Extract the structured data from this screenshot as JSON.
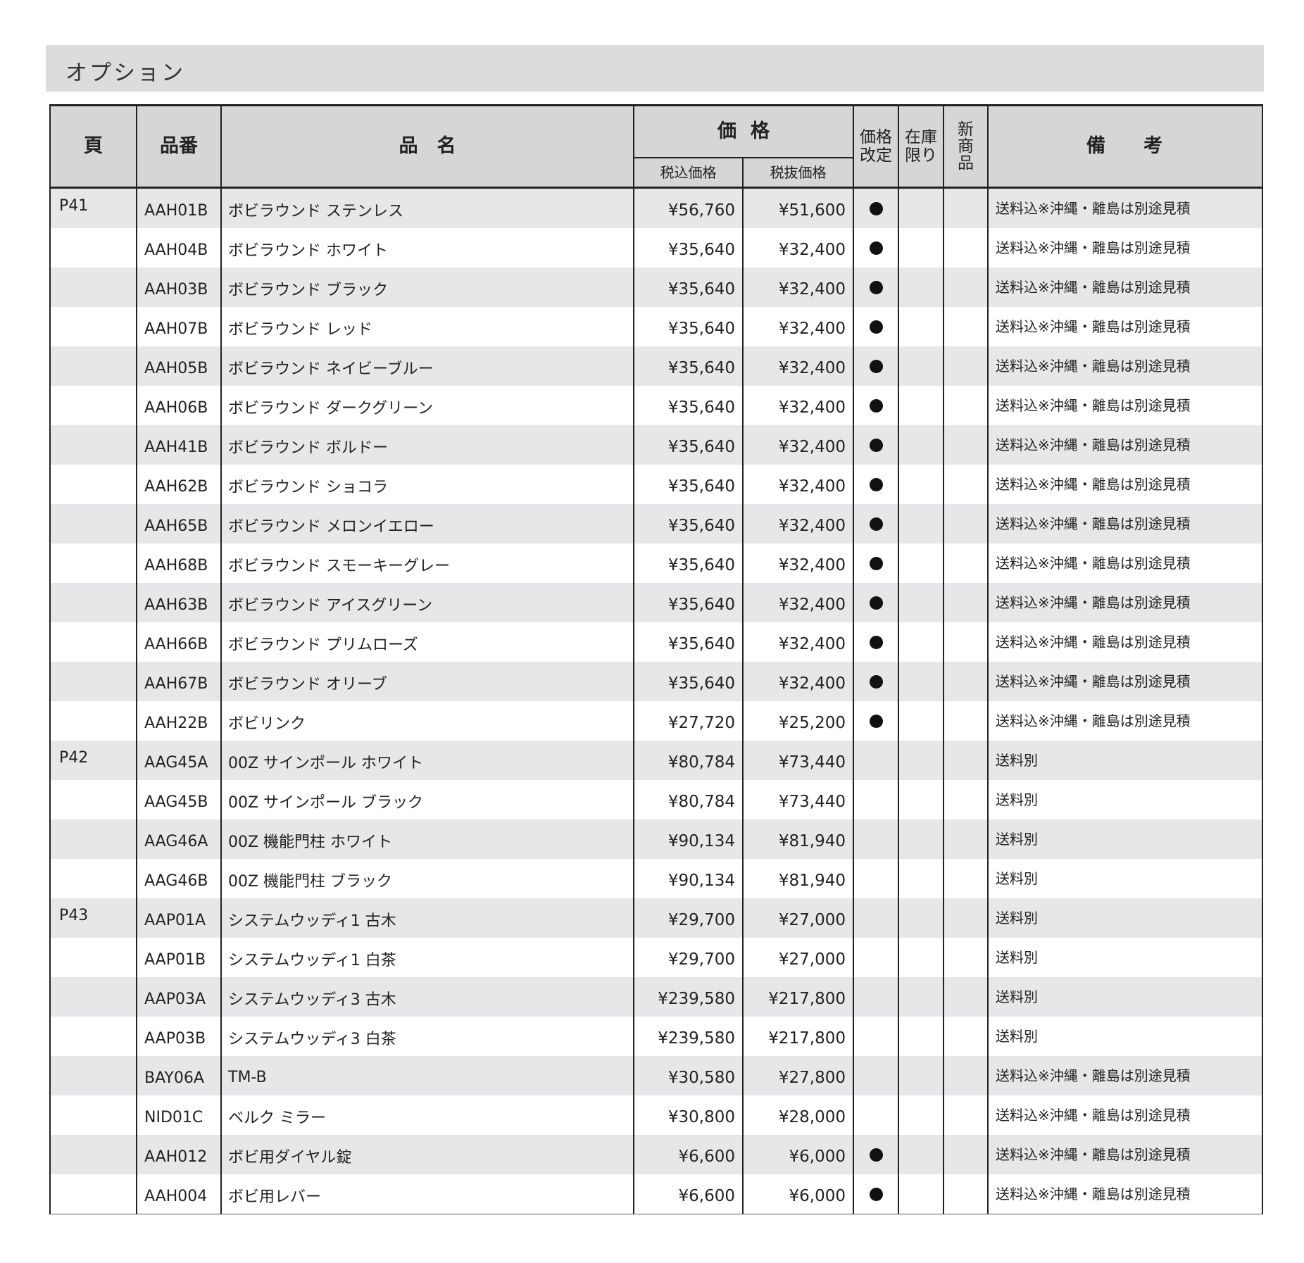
{
  "title": "オプション",
  "header": {
    "page": "頁",
    "code": "品番",
    "name": "品　名",
    "price": "価格",
    "price_incl": "税込価格",
    "price_excl": "税抜価格",
    "price_revised": "価格改定",
    "stock_limited": "在庫限り",
    "new_item": "新商品",
    "remarks": "備　　考"
  },
  "rows": [
    {
      "page": "P41",
      "code": "AAH01B",
      "name": "ボビラウンド ステンレス",
      "incl": "¥56,760",
      "excl": "¥51,600",
      "revised": true,
      "note": "送料込※沖縄・離島は別途見積"
    },
    {
      "page": "",
      "code": "AAH04B",
      "name": "ボビラウンド ホワイト",
      "incl": "¥35,640",
      "excl": "¥32,400",
      "revised": true,
      "note": "送料込※沖縄・離島は別途見積"
    },
    {
      "page": "",
      "code": "AAH03B",
      "name": "ボビラウンド ブラック",
      "incl": "¥35,640",
      "excl": "¥32,400",
      "revised": true,
      "note": "送料込※沖縄・離島は別途見積"
    },
    {
      "page": "",
      "code": "AAH07B",
      "name": "ボビラウンド レッド",
      "incl": "¥35,640",
      "excl": "¥32,400",
      "revised": true,
      "note": "送料込※沖縄・離島は別途見積"
    },
    {
      "page": "",
      "code": "AAH05B",
      "name": "ボビラウンド ネイビーブルー",
      "incl": "¥35,640",
      "excl": "¥32,400",
      "revised": true,
      "note": "送料込※沖縄・離島は別途見積"
    },
    {
      "page": "",
      "code": "AAH06B",
      "name": "ボビラウンド ダークグリーン",
      "incl": "¥35,640",
      "excl": "¥32,400",
      "revised": true,
      "note": "送料込※沖縄・離島は別途見積"
    },
    {
      "page": "",
      "code": "AAH41B",
      "name": "ボビラウンド ボルドー",
      "incl": "¥35,640",
      "excl": "¥32,400",
      "revised": true,
      "note": "送料込※沖縄・離島は別途見積"
    },
    {
      "page": "",
      "code": "AAH62B",
      "name": "ボビラウンド ショコラ",
      "incl": "¥35,640",
      "excl": "¥32,400",
      "revised": true,
      "note": "送料込※沖縄・離島は別途見積"
    },
    {
      "page": "",
      "code": "AAH65B",
      "name": "ボビラウンド メロンイエロー",
      "incl": "¥35,640",
      "excl": "¥32,400",
      "revised": true,
      "note": "送料込※沖縄・離島は別途見積"
    },
    {
      "page": "",
      "code": "AAH68B",
      "name": "ボビラウンド スモーキーグレー",
      "incl": "¥35,640",
      "excl": "¥32,400",
      "revised": true,
      "note": "送料込※沖縄・離島は別途見積"
    },
    {
      "page": "",
      "code": "AAH63B",
      "name": "ボビラウンド アイスグリーン",
      "incl": "¥35,640",
      "excl": "¥32,400",
      "revised": true,
      "note": "送料込※沖縄・離島は別途見積"
    },
    {
      "page": "",
      "code": "AAH66B",
      "name": "ボビラウンド プリムローズ",
      "incl": "¥35,640",
      "excl": "¥32,400",
      "revised": true,
      "note": "送料込※沖縄・離島は別途見積"
    },
    {
      "page": "",
      "code": "AAH67B",
      "name": "ボビラウンド オリーブ",
      "incl": "¥35,640",
      "excl": "¥32,400",
      "revised": true,
      "note": "送料込※沖縄・離島は別途見積"
    },
    {
      "page": "",
      "code": "AAH22B",
      "name": "ボビリンク",
      "incl": "¥27,720",
      "excl": "¥25,200",
      "revised": true,
      "note": "送料込※沖縄・離島は別途見積"
    },
    {
      "page": "P42",
      "code": "AAG45A",
      "name": "00Z サインポール ホワイト",
      "incl": "¥80,784",
      "excl": "¥73,440",
      "revised": false,
      "note": "送料別"
    },
    {
      "page": "",
      "code": "AAG45B",
      "name": "00Z サインポール ブラック",
      "incl": "¥80,784",
      "excl": "¥73,440",
      "revised": false,
      "note": "送料別"
    },
    {
      "page": "",
      "code": "AAG46A",
      "name": "00Z 機能門柱 ホワイト",
      "incl": "¥90,134",
      "excl": "¥81,940",
      "revised": false,
      "note": "送料別"
    },
    {
      "page": "",
      "code": "AAG46B",
      "name": "00Z 機能門柱 ブラック",
      "incl": "¥90,134",
      "excl": "¥81,940",
      "revised": false,
      "note": "送料別"
    },
    {
      "page": "P43",
      "code": "AAP01A",
      "name": "システムウッディ1 古木",
      "incl": "¥29,700",
      "excl": "¥27,000",
      "revised": false,
      "note": "送料別"
    },
    {
      "page": "",
      "code": "AAP01B",
      "name": "システムウッディ1 白茶",
      "incl": "¥29,700",
      "excl": "¥27,000",
      "revised": false,
      "note": "送料別"
    },
    {
      "page": "",
      "code": "AAP03A",
      "name": "システムウッディ3 古木",
      "incl": "¥239,580",
      "excl": "¥217,800",
      "revised": false,
      "note": "送料別"
    },
    {
      "page": "",
      "code": "AAP03B",
      "name": "システムウッディ3 白茶",
      "incl": "¥239,580",
      "excl": "¥217,800",
      "revised": false,
      "note": "送料別"
    },
    {
      "page": "",
      "code": "BAY06A",
      "name": "TM-B",
      "incl": "¥30,580",
      "excl": "¥27,800",
      "revised": false,
      "note": "送料込※沖縄・離島は別途見積"
    },
    {
      "page": "",
      "code": "NID01C",
      "name": "ベルク ミラー",
      "incl": "¥30,800",
      "excl": "¥28,000",
      "revised": false,
      "note": "送料込※沖縄・離島は別途見積"
    },
    {
      "page": "",
      "code": "AAH012",
      "name": "ボビ用ダイヤル錠",
      "incl": "¥6,600",
      "excl": "¥6,000",
      "revised": true,
      "note": "送料込※沖縄・離島は別途見積"
    },
    {
      "page": "",
      "code": "AAH004",
      "name": "ボビ用レバー",
      "incl": "¥6,600",
      "excl": "¥6,000",
      "revised": true,
      "note": "送料込※沖縄・離島は別途見積"
    }
  ]
}
